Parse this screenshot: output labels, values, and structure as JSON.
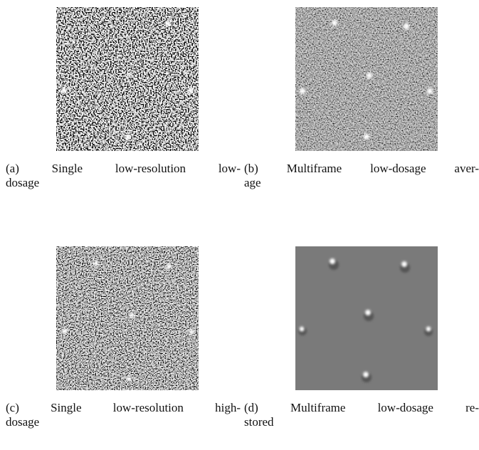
{
  "figure": {
    "subfigures": [
      {
        "caption": [
          "(a) Single low-resolution low-",
          "dosage"
        ]
      },
      {
        "caption": [
          "(b) Multiframe low-dosage aver-",
          "age"
        ]
      },
      {
        "caption": [
          "(c) Single low-resolution high-",
          "dosage"
        ]
      },
      {
        "caption": [
          "(d) Multiframe low-dosage re-",
          "stored"
        ]
      }
    ]
  }
}
